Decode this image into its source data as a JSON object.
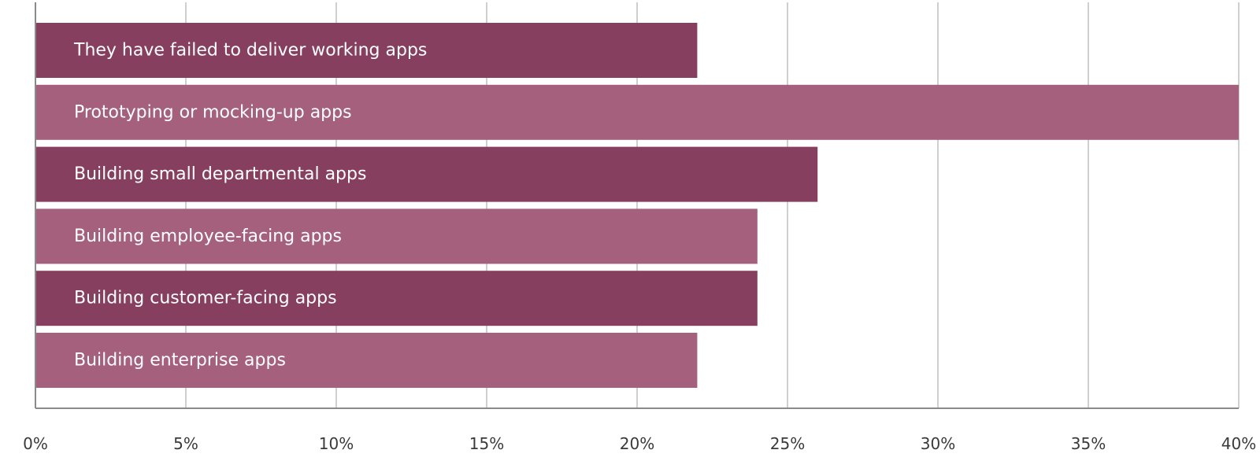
{
  "chart_data": {
    "type": "bar",
    "orientation": "horizontal",
    "categories": [
      "They have failed to deliver working apps",
      "Prototyping or mocking-up apps",
      "Building small departmental apps",
      "Building employee-facing apps",
      "Building customer-facing apps",
      "Building enterprise apps"
    ],
    "values": [
      22,
      40,
      26,
      24,
      24,
      22
    ],
    "bar_colors": [
      "#873f60",
      "#a5607e",
      "#873f60",
      "#a5607e",
      "#873f60",
      "#a5607e"
    ],
    "xlim": [
      0,
      40
    ],
    "x_ticks": [
      0,
      5,
      10,
      15,
      20,
      25,
      30,
      35,
      40
    ],
    "x_tick_labels": [
      "0%",
      "5%",
      "10%",
      "15%",
      "20%",
      "25%",
      "30%",
      "35%",
      "40%"
    ],
    "grid": true,
    "legend": "none"
  }
}
